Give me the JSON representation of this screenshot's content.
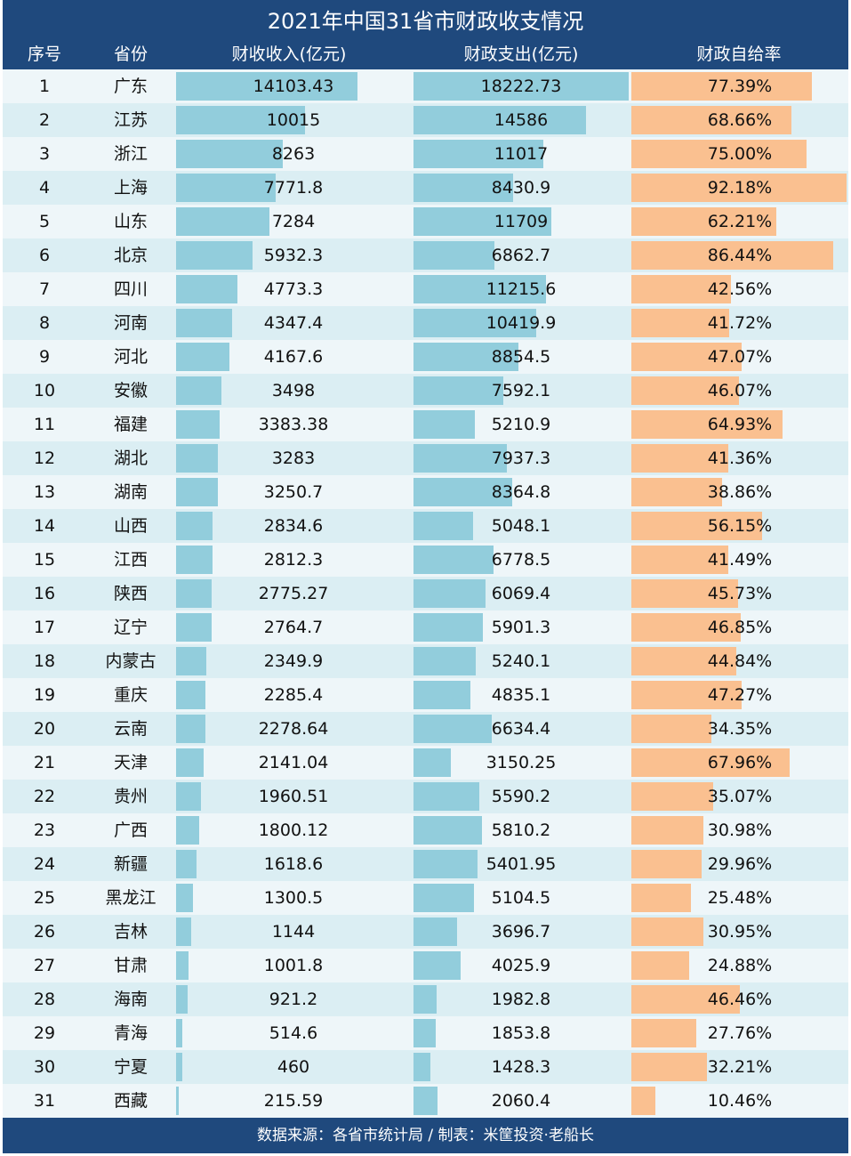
{
  "chart_data": {
    "type": "table",
    "title": "2021年中国31省市财政收支情况",
    "columns": [
      "序号",
      "省份",
      "财收收入(亿元)",
      "财政支出(亿元)",
      "财政自给率"
    ],
    "colors": {
      "header_bg": "#1f497d",
      "income_bar": "#92cddc",
      "expense_bar": "#92cddc",
      "rate_bar": "#fac090",
      "row_odd": "#eef6f9",
      "row_even": "#dbeef3"
    },
    "rows": [
      {
        "rank": "1",
        "province": "广东",
        "income": "14103.43",
        "expense": "18222.73",
        "rate": "77.39%"
      },
      {
        "rank": "2",
        "province": "江苏",
        "income": "10015",
        "expense": "14586",
        "rate": "68.66%"
      },
      {
        "rank": "3",
        "province": "浙江",
        "income": "8263",
        "expense": "11017",
        "rate": "75.00%"
      },
      {
        "rank": "4",
        "province": "上海",
        "income": "7771.8",
        "expense": "8430.9",
        "rate": "92.18%"
      },
      {
        "rank": "5",
        "province": "山东",
        "income": "7284",
        "expense": "11709",
        "rate": "62.21%"
      },
      {
        "rank": "6",
        "province": "北京",
        "income": "5932.3",
        "expense": "6862.7",
        "rate": "86.44%"
      },
      {
        "rank": "7",
        "province": "四川",
        "income": "4773.3",
        "expense": "11215.6",
        "rate": "42.56%"
      },
      {
        "rank": "8",
        "province": "河南",
        "income": "4347.4",
        "expense": "10419.9",
        "rate": "41.72%"
      },
      {
        "rank": "9",
        "province": "河北",
        "income": "4167.6",
        "expense": "8854.5",
        "rate": "47.07%"
      },
      {
        "rank": "10",
        "province": "安徽",
        "income": "3498",
        "expense": "7592.1",
        "rate": "46.07%"
      },
      {
        "rank": "11",
        "province": "福建",
        "income": "3383.38",
        "expense": "5210.9",
        "rate": "64.93%"
      },
      {
        "rank": "12",
        "province": "湖北",
        "income": "3283",
        "expense": "7937.3",
        "rate": "41.36%"
      },
      {
        "rank": "13",
        "province": "湖南",
        "income": "3250.7",
        "expense": "8364.8",
        "rate": "38.86%"
      },
      {
        "rank": "14",
        "province": "山西",
        "income": "2834.6",
        "expense": "5048.1",
        "rate": "56.15%"
      },
      {
        "rank": "15",
        "province": "江西",
        "income": "2812.3",
        "expense": "6778.5",
        "rate": "41.49%"
      },
      {
        "rank": "16",
        "province": "陕西",
        "income": "2775.27",
        "expense": "6069.4",
        "rate": "45.73%"
      },
      {
        "rank": "17",
        "province": "辽宁",
        "income": "2764.7",
        "expense": "5901.3",
        "rate": "46.85%"
      },
      {
        "rank": "18",
        "province": "内蒙古",
        "income": "2349.9",
        "expense": "5240.1",
        "rate": "44.84%"
      },
      {
        "rank": "19",
        "province": "重庆",
        "income": "2285.4",
        "expense": "4835.1",
        "rate": "47.27%"
      },
      {
        "rank": "20",
        "province": "云南",
        "income": "2278.64",
        "expense": "6634.4",
        "rate": "34.35%"
      },
      {
        "rank": "21",
        "province": "天津",
        "income": "2141.04",
        "expense": "3150.25",
        "rate": "67.96%"
      },
      {
        "rank": "22",
        "province": "贵州",
        "income": "1960.51",
        "expense": "5590.2",
        "rate": "35.07%"
      },
      {
        "rank": "23",
        "province": "广西",
        "income": "1800.12",
        "expense": "5810.2",
        "rate": "30.98%"
      },
      {
        "rank": "24",
        "province": "新疆",
        "income": "1618.6",
        "expense": "5401.95",
        "rate": "29.96%"
      },
      {
        "rank": "25",
        "province": "黑龙江",
        "income": "1300.5",
        "expense": "5104.5",
        "rate": "25.48%"
      },
      {
        "rank": "26",
        "province": "吉林",
        "income": "1144",
        "expense": "3696.7",
        "rate": "30.95%"
      },
      {
        "rank": "27",
        "province": "甘肃",
        "income": "1001.8",
        "expense": "4025.9",
        "rate": "24.88%"
      },
      {
        "rank": "28",
        "province": "海南",
        "income": "921.2",
        "expense": "1982.8",
        "rate": "46.46%"
      },
      {
        "rank": "29",
        "province": "青海",
        "income": "514.6",
        "expense": "1853.8",
        "rate": "27.76%"
      },
      {
        "rank": "30",
        "province": "宁夏",
        "income": "460",
        "expense": "1428.3",
        "rate": "32.21%"
      },
      {
        "rank": "31",
        "province": "西藏",
        "income": "215.59",
        "expense": "2060.4",
        "rate": "10.46%"
      }
    ],
    "footer": "数据来源：各省市统计局 / 制表：米筐投资·老船长"
  }
}
